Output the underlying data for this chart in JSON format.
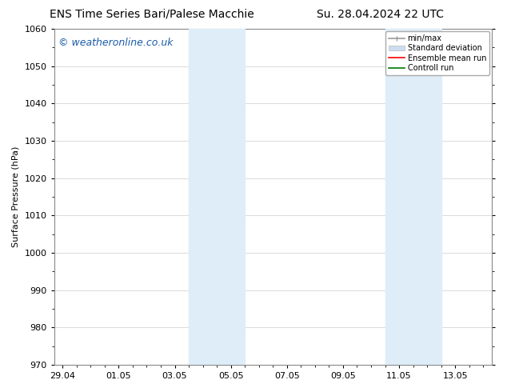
{
  "title_left": "ENS Time Series Bari/Palese Macchie",
  "title_right": "Su. 28.04.2024 22 UTC",
  "ylabel": "Surface Pressure (hPa)",
  "ylim": [
    970,
    1060
  ],
  "yticks": [
    970,
    980,
    990,
    1000,
    1010,
    1020,
    1030,
    1040,
    1050,
    1060
  ],
  "xtick_labels": [
    "29.04",
    "01.05",
    "03.05",
    "05.05",
    "07.05",
    "09.05",
    "11.05",
    "13.05"
  ],
  "xtick_positions": [
    0,
    2,
    4,
    6,
    8,
    10,
    12,
    14
  ],
  "xlim": [
    -0.3,
    15.3
  ],
  "shaded_regions": [
    {
      "xstart": 4.5,
      "xend": 6.5,
      "color": "#deedf8"
    },
    {
      "xstart": 11.5,
      "xend": 13.5,
      "color": "#deedf8"
    }
  ],
  "watermark_text": "© weatheronline.co.uk",
  "watermark_color": "#1a5ca8",
  "background_color": "#ffffff",
  "plot_bg_color": "#ffffff",
  "grid_color": "#cccccc",
  "legend_labels": [
    "min/max",
    "Standard deviation",
    "Ensemble mean run",
    "Controll run"
  ],
  "legend_colors": [
    "#999999",
    "#ccddf0",
    "#ff0000",
    "#007700"
  ],
  "title_fontsize": 10,
  "axis_label_fontsize": 8,
  "tick_fontsize": 8,
  "watermark_fontsize": 9
}
